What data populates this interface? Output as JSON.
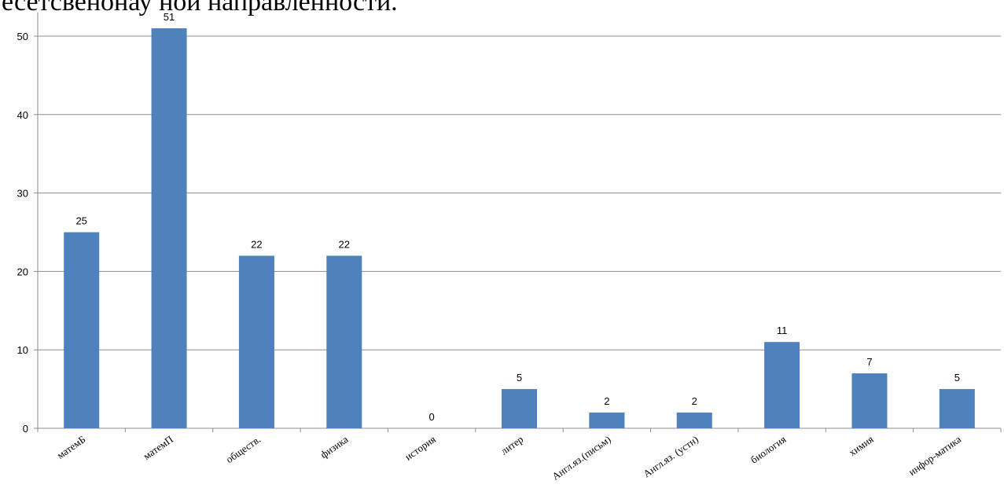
{
  "heading": "есетсвенонау ной направленности.",
  "chart_data": {
    "type": "bar",
    "categories": [
      "матемБ",
      "матемП",
      "обществ.",
      "физика",
      "история",
      "литер",
      "Англ.яз.(письм)",
      "Англ.яз. (устн)",
      "биология",
      "химия",
      "инфор-матика"
    ],
    "values": [
      25,
      51,
      22,
      22,
      0,
      5,
      2,
      2,
      11,
      7,
      5
    ],
    "data_labels": [
      "25",
      "51",
      "22",
      "22",
      "0",
      "5",
      "2",
      "2",
      "11",
      "7",
      "5"
    ],
    "ylim": [
      0,
      50
    ],
    "yticks": [
      0,
      10,
      20,
      30,
      40,
      50
    ],
    "ytick_labels": [
      "0",
      "10",
      "20",
      "30",
      "40",
      "50"
    ],
    "grid": true,
    "legend": "none",
    "bar_color": "#4f81bd",
    "grid_color": "#8c8c8c"
  }
}
